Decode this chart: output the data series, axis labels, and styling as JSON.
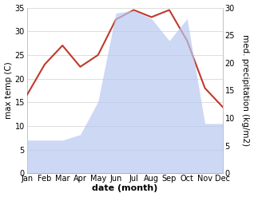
{
  "months": [
    "Jan",
    "Feb",
    "Mar",
    "Apr",
    "May",
    "Jun",
    "Jul",
    "Aug",
    "Sep",
    "Oct",
    "Nov",
    "Dec"
  ],
  "temperature": [
    16.5,
    23.0,
    27.0,
    22.5,
    25.0,
    32.5,
    34.5,
    33.0,
    34.5,
    28.0,
    18.0,
    14.0
  ],
  "precipitation": [
    6.0,
    6.0,
    6.0,
    7.0,
    13.0,
    29.0,
    29.5,
    28.0,
    24.0,
    28.0,
    9.0,
    9.0
  ],
  "temp_ylim": [
    0,
    35
  ],
  "precip_ylim": [
    0,
    30
  ],
  "temp_color": "#c0392b",
  "precip_color": "#b8c8f0",
  "xlabel": "date (month)",
  "ylabel_left": "max temp (C)",
  "ylabel_right": "med. precipitation (kg/m2)",
  "plot_bg_color": "#ffffff",
  "label_fontsize": 8,
  "tick_fontsize": 7,
  "axis_label_fontsize": 7.5
}
